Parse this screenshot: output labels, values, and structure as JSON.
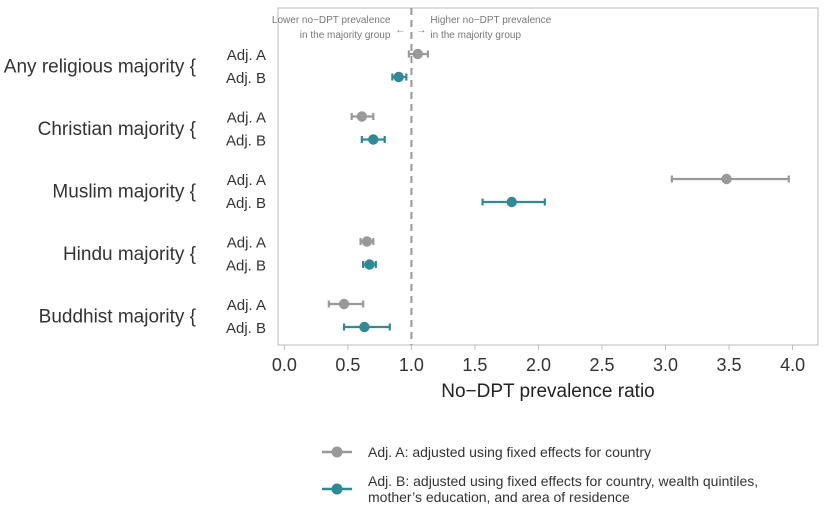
{
  "chart_data": {
    "type": "forest",
    "xlabel": "No−DPT prevalence ratio",
    "xlim": [
      -0.05,
      4.2
    ],
    "x_ticks": [
      {
        "value": 0.0,
        "label": "0.0"
      },
      {
        "value": 0.5,
        "label": "0.5"
      },
      {
        "value": 1.0,
        "label": "1.0"
      },
      {
        "value": 1.5,
        "label": "1.5"
      },
      {
        "value": 2.0,
        "label": "2.0"
      },
      {
        "value": 2.5,
        "label": "2.5"
      },
      {
        "value": 3.0,
        "label": "3.0"
      },
      {
        "value": 3.5,
        "label": "3.5"
      },
      {
        "value": 4.0,
        "label": "4.0"
      }
    ],
    "reference_line": 1.0,
    "annotations": {
      "left_line1": "Lower no−DPT prevalence",
      "left_line2": "in the majority group",
      "right_line1": "Higher no−DPT prevalence",
      "right_line2": "in the majority group",
      "left_arrow": "←",
      "right_arrow": "→"
    },
    "colors": {
      "adj_a": "#999999",
      "adj_b": "#2f8a96",
      "reference": "#999999",
      "frame": "#bbbbbb"
    },
    "groups": [
      {
        "label": "Any religious majority {",
        "rows": [
          {
            "series": "adj_a",
            "label": "Adj. A",
            "estimate": 1.05,
            "lower": 0.98,
            "upper": 1.13
          },
          {
            "series": "adj_b",
            "label": "Adj. B",
            "estimate": 0.9,
            "lower": 0.85,
            "upper": 0.96
          }
        ]
      },
      {
        "label": "Christian majority {",
        "rows": [
          {
            "series": "adj_a",
            "label": "Adj. A",
            "estimate": 0.61,
            "lower": 0.53,
            "upper": 0.7
          },
          {
            "series": "adj_b",
            "label": "Adj. B",
            "estimate": 0.7,
            "lower": 0.61,
            "upper": 0.79
          }
        ]
      },
      {
        "label": "Muslim majority {",
        "rows": [
          {
            "series": "adj_a",
            "label": "Adj. A",
            "estimate": 3.48,
            "lower": 3.05,
            "upper": 3.97
          },
          {
            "series": "adj_b",
            "label": "Adj. B",
            "estimate": 1.79,
            "lower": 1.56,
            "upper": 2.05
          }
        ]
      },
      {
        "label": "Hindu majority {",
        "rows": [
          {
            "series": "adj_a",
            "label": "Adj. A",
            "estimate": 0.65,
            "lower": 0.6,
            "upper": 0.7
          },
          {
            "series": "adj_b",
            "label": "Adj. B",
            "estimate": 0.67,
            "lower": 0.62,
            "upper": 0.72
          }
        ]
      },
      {
        "label": "Buddhist majority {",
        "rows": [
          {
            "series": "adj_a",
            "label": "Adj. A",
            "estimate": 0.47,
            "lower": 0.35,
            "upper": 0.62
          },
          {
            "series": "adj_b",
            "label": "Adj. B",
            "estimate": 0.63,
            "lower": 0.47,
            "upper": 0.83
          }
        ]
      }
    ],
    "legend": {
      "position": "bottom",
      "items": [
        {
          "series": "adj_a",
          "lines": [
            "Adj. A: adjusted using fixed effects for country"
          ]
        },
        {
          "series": "adj_b",
          "lines": [
            "Adj. B: adjusted using fixed effects for country, wealth quintiles,",
            "mother’s education, and area of residence"
          ]
        }
      ]
    }
  }
}
